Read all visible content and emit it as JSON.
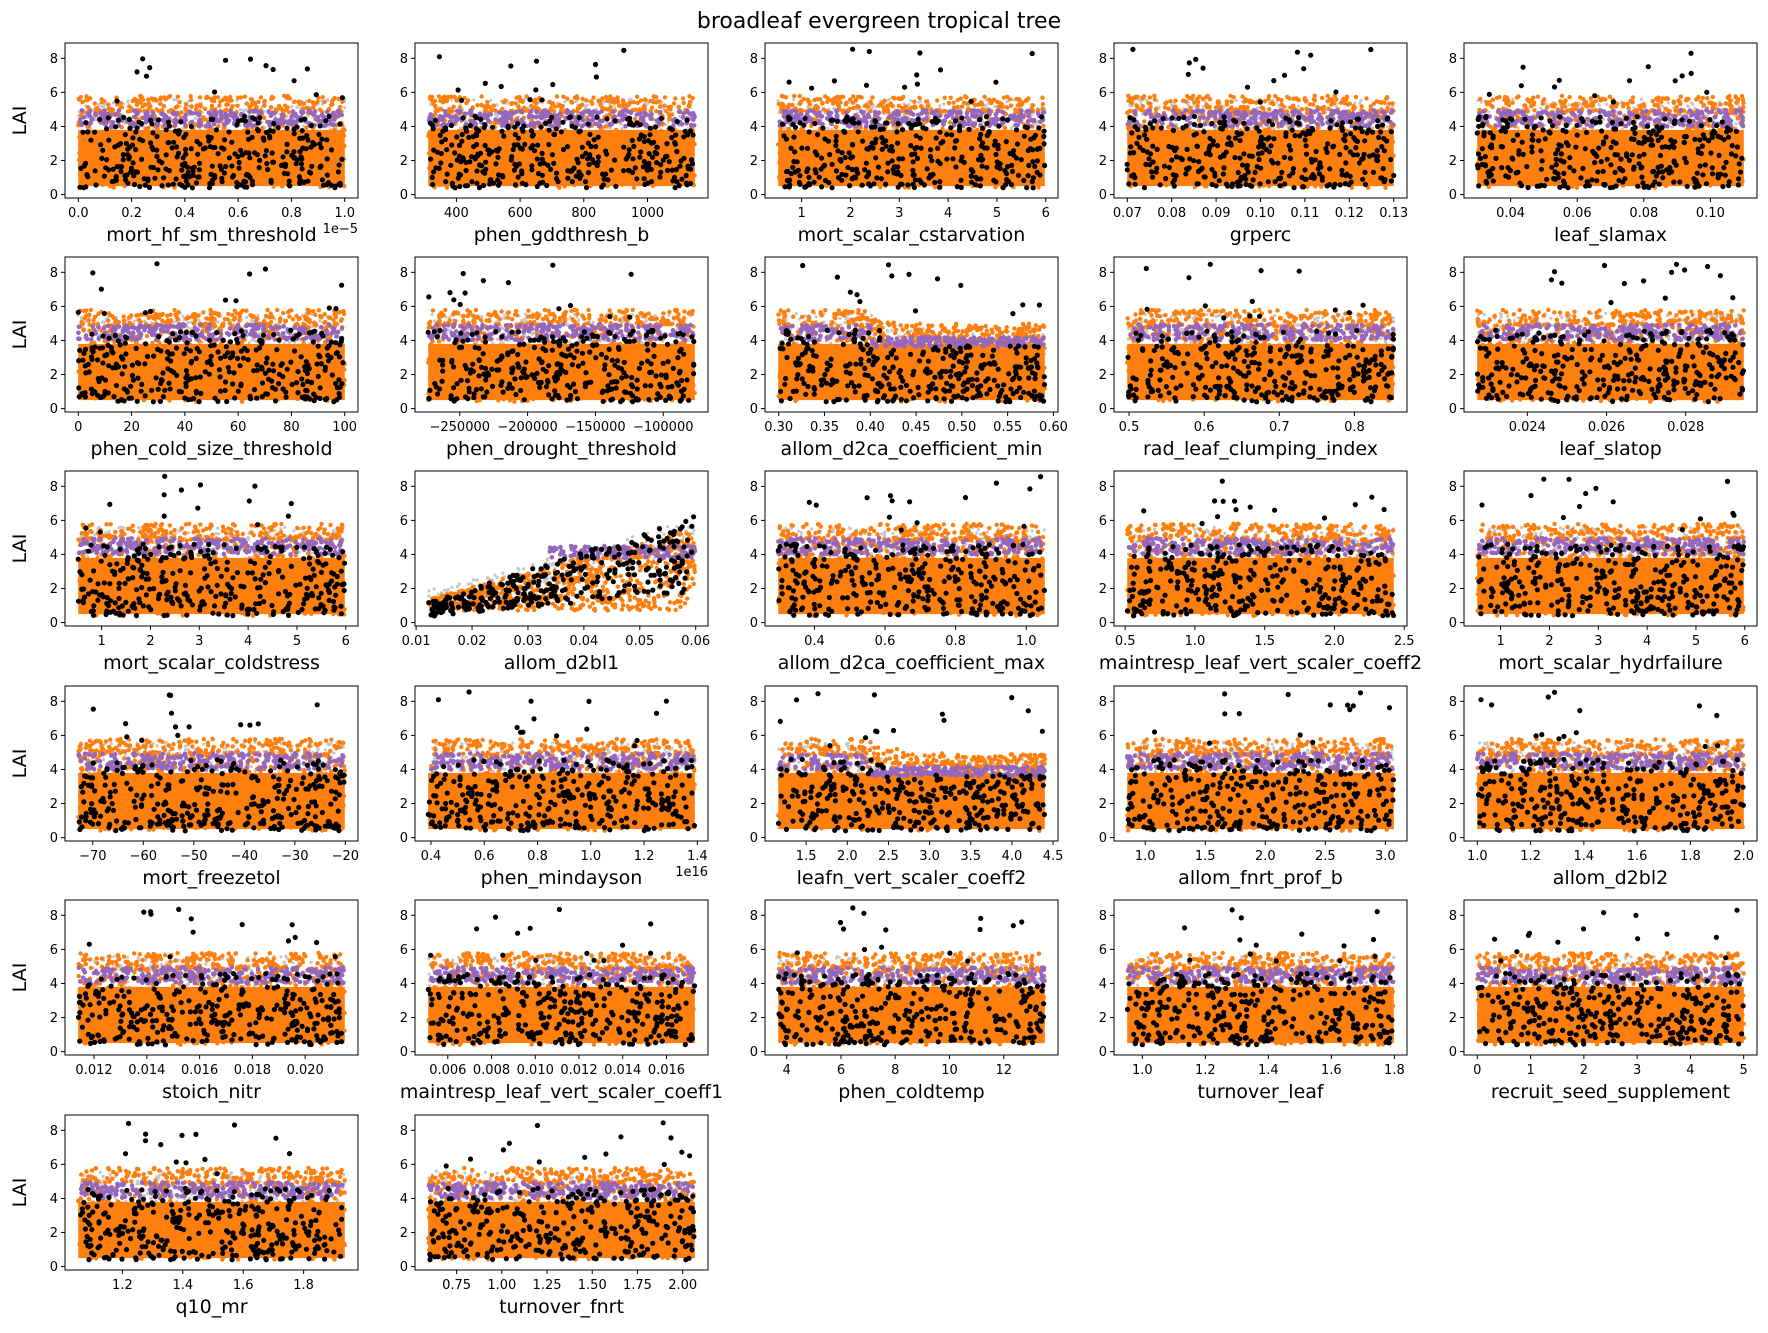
{
  "title": "broadleaf evergreen tropical tree",
  "colors": {
    "background_points": "#c7c7c7",
    "orange_points": "#ff7f0e",
    "purple_points": "#9467bd",
    "black_points": "#000000"
  },
  "chart_data": [
    {
      "type": "scatter",
      "xlabel": "mort_hf_sm_threshold",
      "ylabel": "LAI",
      "offset_text": "1e−5",
      "xlim": [
        -0.05,
        1.05
      ],
      "ylim": [
        -0.2,
        8.9
      ],
      "xticks": [
        0.0,
        0.2,
        0.4,
        0.6,
        0.8,
        1.0
      ],
      "xticklabels": [
        "0.0",
        "0.2",
        "0.4",
        "0.6",
        "0.8",
        "1.0"
      ],
      "yticks": [
        0,
        2,
        4,
        6,
        8
      ],
      "pattern": "flat"
    },
    {
      "type": "scatter",
      "xlabel": "phen_gddthresh_b",
      "ylabel": "",
      "xlim": [
        270,
        1190
      ],
      "ylim": [
        -0.2,
        8.9
      ],
      "xticks": [
        400,
        600,
        800,
        1000
      ],
      "xticklabels": [
        "400",
        "600",
        "800",
        "1000"
      ],
      "yticks": [
        0,
        2,
        4,
        6,
        8
      ],
      "pattern": "flat"
    },
    {
      "type": "scatter",
      "xlabel": "mort_scalar_cstarvation",
      "ylabel": "",
      "xlim": [
        0.25,
        6.25
      ],
      "ylim": [
        -0.2,
        8.9
      ],
      "xticks": [
        1,
        2,
        3,
        4,
        5,
        6
      ],
      "xticklabels": [
        "1",
        "2",
        "3",
        "4",
        "5",
        "6"
      ],
      "yticks": [
        0,
        2,
        4,
        6,
        8
      ],
      "pattern": "flat"
    },
    {
      "type": "scatter",
      "xlabel": "grperc",
      "ylabel": "",
      "xlim": [
        0.067,
        0.133
      ],
      "ylim": [
        -0.2,
        8.9
      ],
      "xticks": [
        0.07,
        0.08,
        0.09,
        0.1,
        0.11,
        0.12,
        0.13
      ],
      "xticklabels": [
        "0.07",
        "0.08",
        "0.09",
        "0.10",
        "0.11",
        "0.12",
        "0.13"
      ],
      "yticks": [
        0,
        2,
        4,
        6,
        8
      ],
      "pattern": "flat"
    },
    {
      "type": "scatter",
      "xlabel": "leaf_slamax",
      "ylabel": "",
      "xlim": [
        0.026,
        0.114
      ],
      "ylim": [
        -0.2,
        8.9
      ],
      "xticks": [
        0.04,
        0.06,
        0.08,
        0.1
      ],
      "xticklabels": [
        "0.04",
        "0.06",
        "0.08",
        "0.10"
      ],
      "yticks": [
        0,
        2,
        4,
        6,
        8
      ],
      "pattern": "flat"
    },
    {
      "type": "scatter",
      "xlabel": "phen_cold_size_threshold",
      "ylabel": "LAI",
      "xlim": [
        -5,
        105
      ],
      "ylim": [
        -0.2,
        8.9
      ],
      "xticks": [
        0,
        20,
        40,
        60,
        80,
        100
      ],
      "xticklabels": [
        "0",
        "20",
        "40",
        "60",
        "80",
        "100"
      ],
      "yticks": [
        0,
        2,
        4,
        6,
        8
      ],
      "pattern": "flat"
    },
    {
      "type": "scatter",
      "xlabel": "phen_drought_threshold",
      "ylabel": "",
      "xlim": [
        -283000,
        -67000
      ],
      "ylim": [
        -0.2,
        8.9
      ],
      "xticks": [
        -250000,
        -200000,
        -150000,
        -100000
      ],
      "xticklabels": [
        "−250000",
        "−200000",
        "−150000",
        "−100000"
      ],
      "yticks": [
        0,
        2,
        4,
        6,
        8
      ],
      "pattern": "flat"
    },
    {
      "type": "scatter",
      "xlabel": "allom_d2ca_coefficient_min",
      "ylabel": "",
      "xlim": [
        0.285,
        0.605
      ],
      "ylim": [
        -0.2,
        8.9
      ],
      "xticks": [
        0.3,
        0.35,
        0.4,
        0.45,
        0.5,
        0.55,
        0.6
      ],
      "xticklabels": [
        "0.30",
        "0.35",
        "0.40",
        "0.45",
        "0.50",
        "0.55",
        "0.60"
      ],
      "yticks": [
        0,
        2,
        4,
        6,
        8
      ],
      "pattern": "step-down"
    },
    {
      "type": "scatter",
      "xlabel": "rad_leaf_clumping_index",
      "ylabel": "",
      "xlim": [
        0.48,
        0.87
      ],
      "ylim": [
        -0.2,
        8.9
      ],
      "xticks": [
        0.5,
        0.6,
        0.7,
        0.8
      ],
      "xticklabels": [
        "0.5",
        "0.6",
        "0.7",
        "0.8"
      ],
      "yticks": [
        0,
        2,
        4,
        6,
        8
      ],
      "pattern": "flat"
    },
    {
      "type": "scatter",
      "xlabel": "leaf_slatop",
      "ylabel": "",
      "xlim": [
        0.0224,
        0.0298
      ],
      "ylim": [
        -0.2,
        8.9
      ],
      "xticks": [
        0.024,
        0.026,
        0.028
      ],
      "xticklabels": [
        "0.024",
        "0.026",
        "0.028"
      ],
      "yticks": [
        0,
        2,
        4,
        6,
        8
      ],
      "pattern": "flat"
    },
    {
      "type": "scatter",
      "xlabel": "mort_scalar_coldstress",
      "ylabel": "LAI",
      "xlim": [
        0.25,
        6.25
      ],
      "ylim": [
        -0.2,
        8.9
      ],
      "xticks": [
        1,
        2,
        3,
        4,
        5,
        6
      ],
      "xticklabels": [
        "1",
        "2",
        "3",
        "4",
        "5",
        "6"
      ],
      "yticks": [
        0,
        2,
        4,
        6,
        8
      ],
      "pattern": "flat"
    },
    {
      "type": "scatter",
      "xlabel": "allom_d2bl1",
      "ylabel": "",
      "xlim": [
        0.0098,
        0.0622
      ],
      "ylim": [
        -0.2,
        8.9
      ],
      "xticks": [
        0.01,
        0.02,
        0.03,
        0.04,
        0.05,
        0.06
      ],
      "xticklabels": [
        "0.01",
        "0.02",
        "0.03",
        "0.04",
        "0.05",
        "0.06"
      ],
      "yticks": [
        0,
        2,
        4,
        6,
        8
      ],
      "pattern": "rising"
    },
    {
      "type": "scatter",
      "xlabel": "allom_d2ca_coefficient_max",
      "ylabel": "",
      "xlim": [
        0.26,
        1.09
      ],
      "ylim": [
        -0.2,
        8.9
      ],
      "xticks": [
        0.4,
        0.6,
        0.8,
        1.0
      ],
      "xticklabels": [
        "0.4",
        "0.6",
        "0.8",
        "1.0"
      ],
      "yticks": [
        0,
        2,
        4,
        6,
        8
      ],
      "pattern": "flat"
    },
    {
      "type": "scatter",
      "xlabel": "maintresp_leaf_vert_scaler_coeff2",
      "ylabel": "",
      "xlim": [
        0.42,
        2.52
      ],
      "ylim": [
        -0.2,
        8.9
      ],
      "xticks": [
        0.5,
        1.0,
        1.5,
        2.0,
        2.5
      ],
      "xticklabels": [
        "0.5",
        "1.0",
        "1.5",
        "2.0",
        "2.5"
      ],
      "yticks": [
        0,
        2,
        4,
        6,
        8
      ],
      "pattern": "flat"
    },
    {
      "type": "scatter",
      "xlabel": "mort_scalar_hydrfailure",
      "ylabel": "",
      "xlim": [
        0.25,
        6.25
      ],
      "ylim": [
        -0.2,
        8.9
      ],
      "xticks": [
        1,
        2,
        3,
        4,
        5,
        6
      ],
      "xticklabels": [
        "1",
        "2",
        "3",
        "4",
        "5",
        "6"
      ],
      "yticks": [
        0,
        2,
        4,
        6,
        8
      ],
      "pattern": "flat"
    },
    {
      "type": "scatter",
      "xlabel": "mort_freezetol",
      "ylabel": "LAI",
      "xlim": [
        -75.5,
        -17.5
      ],
      "ylim": [
        -0.2,
        8.9
      ],
      "xticks": [
        -70,
        -60,
        -50,
        -40,
        -30,
        -20
      ],
      "xticklabels": [
        "−70",
        "−60",
        "−50",
        "−40",
        "−30",
        "−20"
      ],
      "yticks": [
        0,
        2,
        4,
        6,
        8
      ],
      "pattern": "flat"
    },
    {
      "type": "scatter",
      "xlabel": "phen_mindayson",
      "ylabel": "",
      "offset_text": "1e16",
      "xlim": [
        0.34,
        1.44
      ],
      "ylim": [
        -0.2,
        8.9
      ],
      "xticks": [
        0.4,
        0.6,
        0.8,
        1.0,
        1.2,
        1.4
      ],
      "xticklabels": [
        "0.4",
        "0.6",
        "0.8",
        "1.0",
        "1.2",
        "1.4"
      ],
      "yticks": [
        0,
        2,
        4,
        6,
        8
      ],
      "pattern": "flat"
    },
    {
      "type": "scatter",
      "xlabel": "leafn_vert_scaler_coeff2",
      "ylabel": "",
      "xlim": [
        1.0,
        4.56
      ],
      "ylim": [
        -0.2,
        8.9
      ],
      "xticks": [
        1.5,
        2.0,
        2.5,
        3.0,
        3.5,
        4.0,
        4.5
      ],
      "xticklabels": [
        "1.5",
        "2.0",
        "2.5",
        "3.0",
        "3.5",
        "4.0",
        "4.5"
      ],
      "yticks": [
        0,
        2,
        4,
        6,
        8
      ],
      "pattern": "step-down"
    },
    {
      "type": "scatter",
      "xlabel": "allom_fnrt_prof_b",
      "ylabel": "",
      "xlim": [
        0.74,
        3.18
      ],
      "ylim": [
        -0.2,
        8.9
      ],
      "xticks": [
        1.0,
        1.5,
        2.0,
        2.5,
        3.0
      ],
      "xticklabels": [
        "1.0",
        "1.5",
        "2.0",
        "2.5",
        "3.0"
      ],
      "yticks": [
        0,
        2,
        4,
        6,
        8
      ],
      "pattern": "flat"
    },
    {
      "type": "scatter",
      "xlabel": "allom_d2bl2",
      "ylabel": "",
      "xlim": [
        0.95,
        2.05
      ],
      "ylim": [
        -0.2,
        8.9
      ],
      "xticks": [
        1.0,
        1.2,
        1.4,
        1.6,
        1.8,
        2.0
      ],
      "xticklabels": [
        "1.0",
        "1.2",
        "1.4",
        "1.6",
        "1.8",
        "2.0"
      ],
      "yticks": [
        0,
        2,
        4,
        6,
        8
      ],
      "pattern": "flat"
    },
    {
      "type": "scatter",
      "xlabel": "stoich_nitr",
      "ylabel": "LAI",
      "xlim": [
        0.0109,
        0.022
      ],
      "ylim": [
        -0.2,
        8.9
      ],
      "xticks": [
        0.012,
        0.014,
        0.016,
        0.018,
        0.02
      ],
      "xticklabels": [
        "0.012",
        "0.014",
        "0.016",
        "0.018",
        "0.020"
      ],
      "yticks": [
        0,
        2,
        4,
        6,
        8
      ],
      "pattern": "flat"
    },
    {
      "type": "scatter",
      "xlabel": "maintresp_leaf_vert_scaler_coeff1",
      "ylabel": "",
      "xlim": [
        0.0045,
        0.0179
      ],
      "ylim": [
        -0.2,
        8.9
      ],
      "xticks": [
        0.006,
        0.008,
        0.01,
        0.012,
        0.014,
        0.016
      ],
      "xticklabels": [
        "0.006",
        "0.008",
        "0.010",
        "0.012",
        "0.014",
        "0.016"
      ],
      "yticks": [
        0,
        2,
        4,
        6,
        8
      ],
      "pattern": "flat"
    },
    {
      "type": "scatter",
      "xlabel": "phen_coldtemp",
      "ylabel": "",
      "xlim": [
        3.2,
        14.0
      ],
      "ylim": [
        -0.2,
        8.9
      ],
      "xticks": [
        4,
        6,
        8,
        10,
        12
      ],
      "xticklabels": [
        "4",
        "6",
        "8",
        "10",
        "12"
      ],
      "yticks": [
        0,
        2,
        4,
        6,
        8
      ],
      "pattern": "flat"
    },
    {
      "type": "scatter",
      "xlabel": "turnover_leaf",
      "ylabel": "",
      "xlim": [
        0.91,
        1.84
      ],
      "ylim": [
        -0.2,
        8.9
      ],
      "xticks": [
        1.0,
        1.2,
        1.4,
        1.6,
        1.8
      ],
      "xticklabels": [
        "1.0",
        "1.2",
        "1.4",
        "1.6",
        "1.8"
      ],
      "yticks": [
        0,
        2,
        4,
        6,
        8
      ],
      "pattern": "flat"
    },
    {
      "type": "scatter",
      "xlabel": "recruit_seed_supplement",
      "ylabel": "",
      "xlim": [
        -0.25,
        5.25
      ],
      "ylim": [
        -0.2,
        8.9
      ],
      "xticks": [
        0,
        1,
        2,
        3,
        4,
        5
      ],
      "xticklabels": [
        "0",
        "1",
        "2",
        "3",
        "4",
        "5"
      ],
      "yticks": [
        0,
        2,
        4,
        6,
        8
      ],
      "pattern": "flat"
    },
    {
      "type": "scatter",
      "xlabel": "q10_mr",
      "ylabel": "LAI",
      "xlim": [
        1.01,
        1.98
      ],
      "ylim": [
        -0.2,
        8.9
      ],
      "xticks": [
        1.2,
        1.4,
        1.6,
        1.8
      ],
      "xticklabels": [
        "1.2",
        "1.4",
        "1.6",
        "1.8"
      ],
      "yticks": [
        0,
        2,
        4,
        6,
        8
      ],
      "pattern": "flat"
    },
    {
      "type": "scatter",
      "xlabel": "turnover_fnrt",
      "ylabel": "",
      "xlim": [
        0.52,
        2.14
      ],
      "ylim": [
        -0.2,
        8.9
      ],
      "xticks": [
        0.75,
        1.0,
        1.25,
        1.5,
        1.75,
        2.0
      ],
      "xticklabels": [
        "0.75",
        "1.00",
        "1.25",
        "1.50",
        "1.75",
        "2.00"
      ],
      "yticks": [
        0,
        2,
        4,
        6,
        8
      ],
      "pattern": "flat"
    }
  ]
}
